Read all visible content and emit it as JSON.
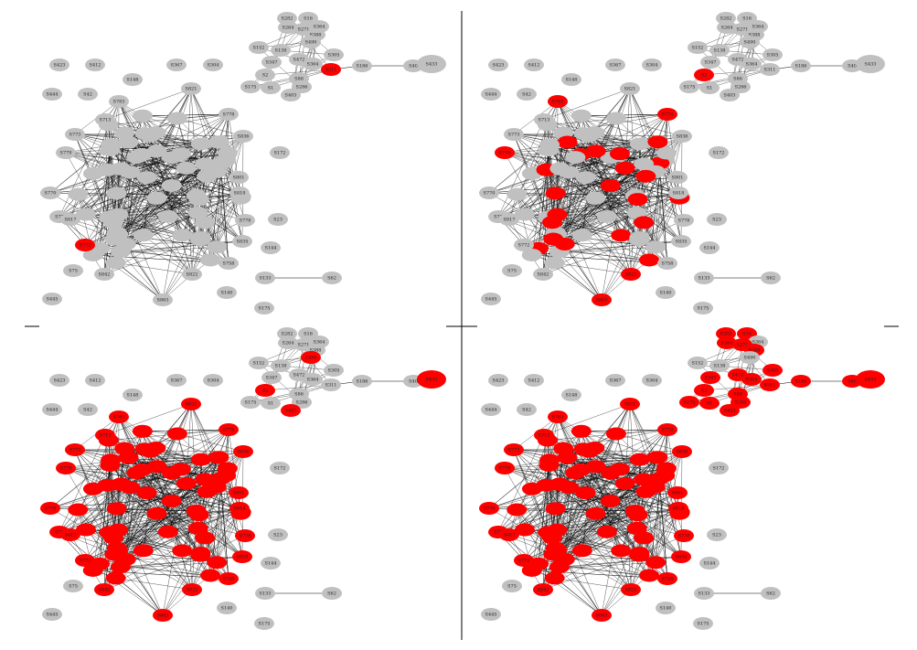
{
  "isolated_nodes": [
    "S423",
    "S412",
    "S367",
    "S304",
    "S148",
    "S444",
    "S42",
    "S172",
    "S23",
    "S144",
    "S133",
    "S62",
    "S140",
    "S175",
    "S75",
    "S445"
  ],
  "main_cluster_nodes": [
    "S783",
    "S821",
    "S778",
    "S773",
    "S836",
    "S779",
    "S801",
    "S818",
    "S770",
    "S77",
    "S817",
    "S778",
    "S835",
    "S772",
    "S758",
    "S842",
    "S863",
    "S713",
    "S822"
  ],
  "top_cluster_nodes": [
    "S282",
    "S16",
    "S264",
    "S364",
    "S271",
    "S388",
    "S490",
    "S152",
    "S138",
    "S347",
    "S472",
    "S364",
    "S311",
    "S175",
    "S1",
    "S286",
    "S86",
    "S403",
    "S2",
    "S305"
  ],
  "chain_nodes": [
    "S186",
    "S40",
    "S433"
  ],
  "node_color": "#c0c0c0",
  "infected_color": "#ff0000",
  "edge_color": "#000000"
}
